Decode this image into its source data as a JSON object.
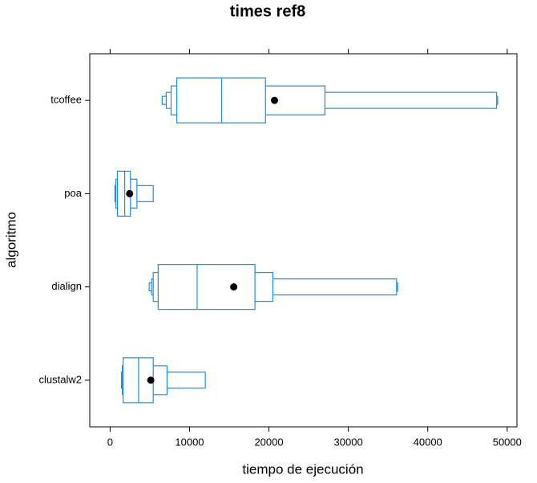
{
  "chart_data": {
    "type": "letter-value",
    "title": "times ref8",
    "x_label": "tiempo de ejecución",
    "y_label": "algoritmo",
    "categories": [
      "tcoffee",
      "poa",
      "dialign",
      "clustalw2"
    ],
    "boxes": [
      {
        "levels": [
          [
            8400,
            19570
          ],
          [
            7680,
            27050
          ],
          [
            7070,
            48670
          ],
          [
            6560,
            48800
          ]
        ],
        "median": 14040,
        "mean": 20700
      },
      {
        "levels": [
          [
            920,
            2560
          ],
          [
            720,
            3380
          ],
          [
            610,
            5430
          ]
        ],
        "median": 1840,
        "mean": 2460
      },
      {
        "levels": [
          [
            6050,
            18240
          ],
          [
            5430,
            20490
          ],
          [
            5230,
            36070
          ],
          [
            4920,
            36200
          ]
        ],
        "median": 10960,
        "mean": 15570
      },
      {
        "levels": [
          [
            1640,
            5430
          ],
          [
            1540,
            7170
          ],
          [
            1430,
            11990
          ]
        ],
        "median": 3590,
        "mean": 5120
      }
    ],
    "color": "#1f8ee0",
    "xlim": [
      -2560,
      51230
    ],
    "xticks": [
      0,
      10000,
      20000,
      30000,
      40000,
      50000
    ]
  }
}
